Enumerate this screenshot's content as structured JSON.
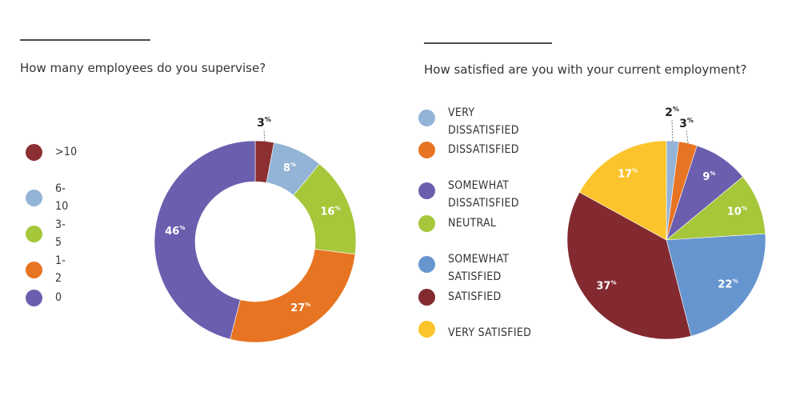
{
  "chart_data": [
    {
      "type": "donut",
      "title": "How many employees do you supervise?",
      "unit_symbol": "%",
      "categories": [
        ">10",
        "6-10",
        "3-5",
        "1-2",
        "0"
      ],
      "values": [
        3,
        8,
        16,
        27,
        46
      ],
      "colors": [
        "#8c2f32",
        "#93b4d6",
        "#a6c73a",
        "#e77422",
        "#6b5eae"
      ],
      "legend_position": "left"
    },
    {
      "type": "pie",
      "title": "How satisfied are you with your current employment?",
      "unit_symbol": "%",
      "categories": [
        "VERY DISSATISFIED",
        "DISSATISFIED",
        "SOMEWHAT DISSATISFIED",
        "NEUTRAL",
        "SOMEWHAT SATISFIED",
        "SATISFIED",
        "VERY SATISFIED"
      ],
      "values": [
        2,
        3,
        9,
        10,
        22,
        37,
        17
      ],
      "colors": [
        "#93b4d6",
        "#e77422",
        "#6b5eae",
        "#a6c73a",
        "#6695d0",
        "#822a30",
        "#fcc42c"
      ],
      "legend_position": "left"
    }
  ]
}
